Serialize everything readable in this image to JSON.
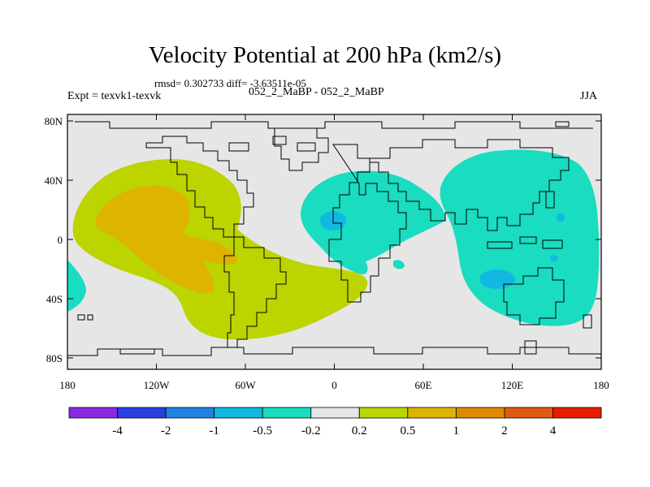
{
  "title": "Velocity Potential at 200 hPa (km2/s)",
  "stats": "rmsd= 0.302733 diff= -3.63511e-05",
  "expt": "Expt = texvk1-texvk",
  "cases": "052_2_MaBP - 052_2_MaBP",
  "season": "JJA",
  "lon_ticks": [
    "180",
    "120W",
    "60W",
    "0",
    "60E",
    "120E",
    "180"
  ],
  "lat_ticks": [
    "80N",
    "40N",
    "0",
    "40S",
    "80S"
  ],
  "colorbar": {
    "colors": [
      "#8a2be2",
      "#2a3fe0",
      "#1e82e0",
      "#12b8e0",
      "#19dcc0",
      "#e6e6e6",
      "#bcd400",
      "#ddb400",
      "#e08a00",
      "#e05a10",
      "#e81e00"
    ],
    "labels": [
      "-4",
      "-2",
      "-1",
      "-0.5",
      "-0.2",
      "0.2",
      "0.5",
      "1",
      "2",
      "4"
    ]
  },
  "fields": {
    "background_color": "#e6e6e6",
    "positive_light": "#bcd400",
    "positive_mid": "#ddb400",
    "negative_light": "#19dcc0",
    "negative_mid": "#12b8e0"
  }
}
